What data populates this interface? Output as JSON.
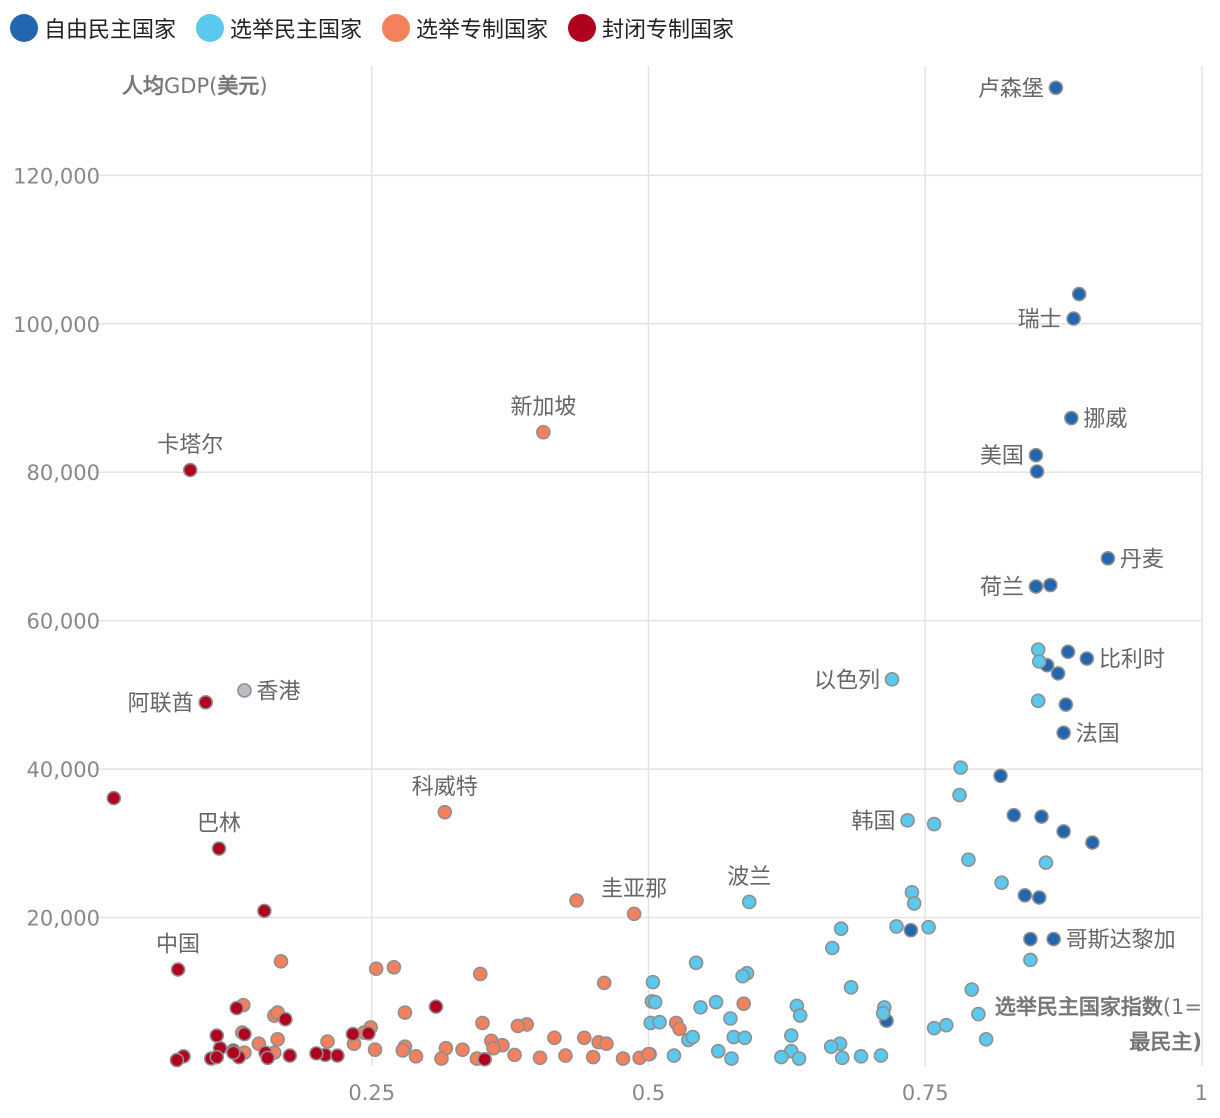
{
  "legend": [
    {
      "label": "自由民主国家",
      "color": "#2266b0"
    },
    {
      "label": "选举民主国家",
      "color": "#5bc8ed"
    },
    {
      "label": "选举专制国家",
      "color": "#f4805e"
    },
    {
      "label": "封闭专制国家",
      "color": "#b00020"
    }
  ],
  "chart_data": {
    "type": "scatter",
    "ylabel_bold_1": "人均",
    "ylabel_plain": "GDP(",
    "ylabel_bold_2": "美元",
    "ylabel_close": ")",
    "xlabel_bold": "选举民主国家指数",
    "xlabel_plain": "(1=",
    "xlabel_line2": "最民主)",
    "xlim": [
      0,
      1
    ],
    "ylim": [
      0,
      132000
    ],
    "x_ticks": [
      {
        "value": 0.25,
        "label": "0.25"
      },
      {
        "value": 0.5,
        "label": "0.5"
      },
      {
        "value": 0.75,
        "label": "0.75"
      },
      {
        "value": 1,
        "label": "1"
      }
    ],
    "y_ticks": [
      {
        "value": 20000,
        "label": "20,000"
      },
      {
        "value": 40000,
        "label": "40,000"
      },
      {
        "value": 60000,
        "label": "60,000"
      },
      {
        "value": 80000,
        "label": "80,000"
      },
      {
        "value": 100000,
        "label": "100,000"
      },
      {
        "value": 120000,
        "label": "120,000"
      }
    ],
    "grid": true,
    "colors": {
      "liberal": "#2266b0",
      "electoral_dem": "#5bc8ed",
      "electoral_auto": "#f4805e",
      "closed_auto": "#b00020",
      "unclassified": "#b7bfc4"
    },
    "series": [
      {
        "name": "自由民主国家",
        "key": "liberal",
        "points": [
          [
            0.868,
            131800
          ],
          [
            0.889,
            104000
          ],
          [
            0.884,
            100700
          ],
          [
            0.882,
            87300
          ],
          [
            0.85,
            82300
          ],
          [
            0.851,
            80100
          ],
          [
            0.915,
            68400
          ],
          [
            0.85,
            64600
          ],
          [
            0.863,
            64800
          ],
          [
            0.879,
            55800
          ],
          [
            0.896,
            54900
          ],
          [
            0.86,
            54000
          ],
          [
            0.87,
            52900
          ],
          [
            0.877,
            48700
          ],
          [
            0.875,
            44900
          ],
          [
            0.818,
            39100
          ],
          [
            0.83,
            33800
          ],
          [
            0.855,
            33600
          ],
          [
            0.875,
            31600
          ],
          [
            0.901,
            30100
          ],
          [
            0.84,
            23000
          ],
          [
            0.853,
            22700
          ],
          [
            0.737,
            18300
          ],
          [
            0.845,
            17100
          ],
          [
            0.866,
            17100
          ],
          [
            0.715,
            6100
          ]
        ]
      },
      {
        "name": "选举民主国家",
        "key": "electoral_dem",
        "points": [
          [
            0.72,
            52100
          ],
          [
            0.852,
            56100
          ],
          [
            0.853,
            54500
          ],
          [
            0.852,
            49200
          ],
          [
            0.782,
            40200
          ],
          [
            0.781,
            36500
          ],
          [
            0.734,
            33100
          ],
          [
            0.758,
            32600
          ],
          [
            0.789,
            27800
          ],
          [
            0.859,
            27400
          ],
          [
            0.819,
            24700
          ],
          [
            0.738,
            23400
          ],
          [
            0.74,
            21900
          ],
          [
            0.591,
            22100
          ],
          [
            0.724,
            18800
          ],
          [
            0.753,
            18700
          ],
          [
            0.674,
            18500
          ],
          [
            0.666,
            15900
          ],
          [
            0.845,
            14300
          ],
          [
            0.543,
            13900
          ],
          [
            0.589,
            12500
          ],
          [
            0.585,
            12100
          ],
          [
            0.504,
            11300
          ],
          [
            0.683,
            10600
          ],
          [
            0.792,
            10300
          ],
          [
            0.503,
            8700
          ],
          [
            0.506,
            8600
          ],
          [
            0.561,
            8600
          ],
          [
            0.634,
            8100
          ],
          [
            0.547,
            7900
          ],
          [
            0.713,
            7900
          ],
          [
            0.712,
            7100
          ],
          [
            0.637,
            6800
          ],
          [
            0.574,
            6400
          ],
          [
            0.798,
            7000
          ],
          [
            0.502,
            5800
          ],
          [
            0.51,
            5900
          ],
          [
            0.758,
            5100
          ],
          [
            0.769,
            5500
          ],
          [
            0.536,
            3500
          ],
          [
            0.54,
            3900
          ],
          [
            0.629,
            4100
          ],
          [
            0.577,
            3900
          ],
          [
            0.587,
            3800
          ],
          [
            0.673,
            3000
          ],
          [
            0.665,
            2600
          ],
          [
            0.563,
            2000
          ],
          [
            0.629,
            2000
          ],
          [
            0.62,
            1200
          ],
          [
            0.636,
            1000
          ],
          [
            0.675,
            1100
          ],
          [
            0.692,
            1300
          ],
          [
            0.71,
            1400
          ],
          [
            0.575,
            1000
          ],
          [
            0.523,
            1400
          ],
          [
            0.501,
            1600
          ],
          [
            0.805,
            3600
          ]
        ]
      },
      {
        "name": "选举专制国家",
        "key": "electoral_auto",
        "points": [
          [
            0.405,
            85400
          ],
          [
            0.316,
            34200
          ],
          [
            0.435,
            22300
          ],
          [
            0.487,
            20500
          ],
          [
            0.168,
            14100
          ],
          [
            0.254,
            13100
          ],
          [
            0.27,
            13300
          ],
          [
            0.348,
            12400
          ],
          [
            0.46,
            11200
          ],
          [
            0.134,
            8200
          ],
          [
            0.586,
            8400
          ],
          [
            0.162,
            6800
          ],
          [
            0.165,
            7200
          ],
          [
            0.28,
            7200
          ],
          [
            0.39,
            5600
          ],
          [
            0.382,
            5400
          ],
          [
            0.35,
            5800
          ],
          [
            0.525,
            5800
          ],
          [
            0.528,
            5000
          ],
          [
            0.249,
            5200
          ],
          [
            0.133,
            4500
          ],
          [
            0.243,
            4500
          ],
          [
            0.415,
            3800
          ],
          [
            0.442,
            3800
          ],
          [
            0.165,
            3600
          ],
          [
            0.21,
            3300
          ],
          [
            0.234,
            3000
          ],
          [
            0.148,
            3000
          ],
          [
            0.28,
            2600
          ],
          [
            0.368,
            2800
          ],
          [
            0.358,
            3400
          ],
          [
            0.36,
            2400
          ],
          [
            0.317,
            2400
          ],
          [
            0.455,
            3200
          ],
          [
            0.462,
            3000
          ],
          [
            0.332,
            2200
          ],
          [
            0.253,
            2200
          ],
          [
            0.278,
            2100
          ],
          [
            0.135,
            1800
          ],
          [
            0.162,
            1800
          ],
          [
            0.379,
            1500
          ],
          [
            0.29,
            1300
          ],
          [
            0.313,
            1000
          ],
          [
            0.345,
            1000
          ],
          [
            0.402,
            1100
          ],
          [
            0.45,
            1200
          ],
          [
            0.425,
            1400
          ],
          [
            0.477,
            1000
          ],
          [
            0.492,
            1100
          ],
          [
            0.5,
            1600
          ]
        ]
      },
      {
        "name": "封闭专制国家",
        "key": "closed_auto",
        "points": [
          [
            0.086,
            80300
          ],
          [
            0.1,
            49000
          ],
          [
            0.017,
            36100
          ],
          [
            0.112,
            29300
          ],
          [
            0.153,
            20900
          ],
          [
            0.075,
            13000
          ],
          [
            0.128,
            7800
          ],
          [
            0.172,
            6300
          ],
          [
            0.308,
            8000
          ],
          [
            0.11,
            4100
          ],
          [
            0.135,
            4300
          ],
          [
            0.233,
            4300
          ],
          [
            0.247,
            4400
          ],
          [
            0.113,
            2400
          ],
          [
            0.125,
            2100
          ],
          [
            0.154,
            1800
          ],
          [
            0.176,
            1400
          ],
          [
            0.208,
            1500
          ],
          [
            0.219,
            1400
          ],
          [
            0.08,
            1300
          ],
          [
            0.105,
            1000
          ],
          [
            0.11,
            1200
          ],
          [
            0.13,
            1200
          ],
          [
            0.156,
            1100
          ],
          [
            0.074,
            800
          ],
          [
            0.352,
            900
          ],
          [
            0.125,
            1800
          ],
          [
            0.2,
            1700
          ]
        ]
      },
      {
        "key": "unclassified",
        "points": [
          [
            0.135,
            50600
          ]
        ]
      }
    ],
    "annotations": [
      {
        "text": "卢森堡",
        "x": 0.868,
        "y": 131800,
        "side": "left"
      },
      {
        "text": "瑞士",
        "x": 0.884,
        "y": 100700,
        "side": "left"
      },
      {
        "text": "挪威",
        "x": 0.882,
        "y": 87300,
        "side": "right"
      },
      {
        "text": "美国",
        "x": 0.85,
        "y": 82300,
        "side": "left"
      },
      {
        "text": "丹麦",
        "x": 0.915,
        "y": 68400,
        "side": "right"
      },
      {
        "text": "荷兰",
        "x": 0.85,
        "y": 64600,
        "side": "left"
      },
      {
        "text": "比利时",
        "x": 0.896,
        "y": 54900,
        "side": "right"
      },
      {
        "text": "以色列",
        "x": 0.72,
        "y": 52100,
        "side": "left"
      },
      {
        "text": "法国",
        "x": 0.875,
        "y": 44900,
        "side": "right"
      },
      {
        "text": "韩国",
        "x": 0.734,
        "y": 33100,
        "side": "left"
      },
      {
        "text": "哥斯达黎加",
        "x": 0.866,
        "y": 17100,
        "side": "right"
      },
      {
        "text": "波兰",
        "x": 0.591,
        "y": 22100,
        "side": "above"
      },
      {
        "text": "圭亚那",
        "x": 0.487,
        "y": 20500,
        "side": "above"
      },
      {
        "text": "新加坡",
        "x": 0.405,
        "y": 85400,
        "side": "above"
      },
      {
        "text": "科威特",
        "x": 0.316,
        "y": 34200,
        "side": "above"
      },
      {
        "text": "卡塔尔",
        "x": 0.086,
        "y": 80300,
        "side": "above"
      },
      {
        "text": "香港",
        "x": 0.135,
        "y": 50600,
        "side": "right"
      },
      {
        "text": "阿联酋",
        "x": 0.1,
        "y": 49000,
        "side": "left"
      },
      {
        "text": "巴林",
        "x": 0.112,
        "y": 29300,
        "side": "above"
      },
      {
        "text": "中国",
        "x": 0.075,
        "y": 13000,
        "side": "above"
      }
    ]
  }
}
